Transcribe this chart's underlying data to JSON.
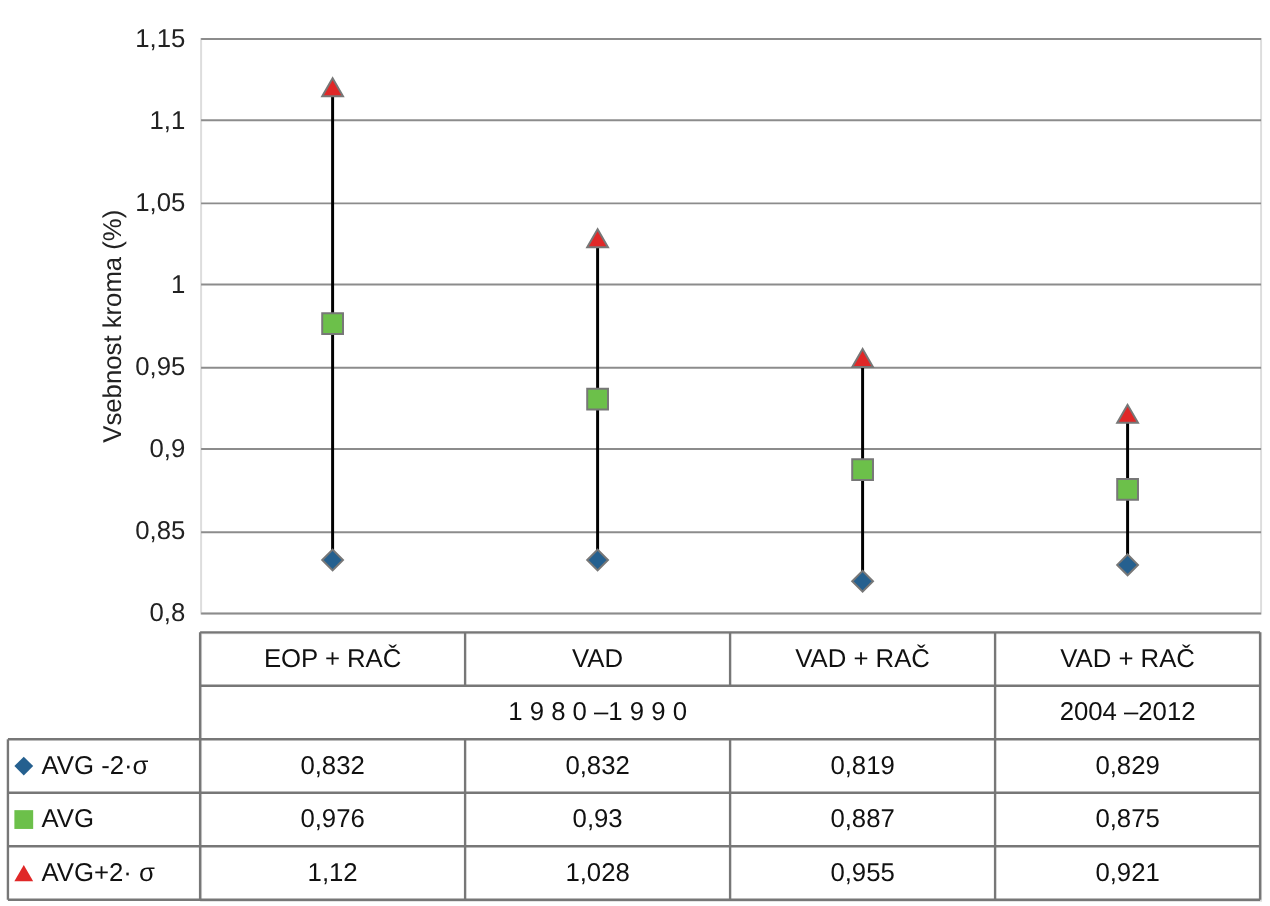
{
  "chart_data": {
    "type": "scatter",
    "ylabel": "Vsebnost kroma (%)",
    "categories": [
      "EOP + RAČ",
      "VAD",
      "VAD + RAČ",
      "VAD + RAČ"
    ],
    "series": [
      {
        "name": "AVG -2·σ",
        "color": "#25608f",
        "marker": "diamond",
        "values": [
          0.832,
          0.832,
          0.819,
          0.829
        ],
        "value_labels": [
          "0,832",
          "0,832",
          "0,819",
          "0,829"
        ]
      },
      {
        "name": "AVG",
        "color": "#6cc04a",
        "marker": "square",
        "values": [
          0.976,
          0.93,
          0.887,
          0.875
        ],
        "value_labels": [
          "0,976",
          "0,93",
          "0,887",
          "0,875"
        ]
      },
      {
        "name": "AVG+2· σ",
        "color": "#e02828",
        "marker": "triangle",
        "values": [
          1.12,
          1.028,
          0.955,
          0.921
        ],
        "value_labels": [
          "1,12",
          "1,028",
          "0,955",
          "0,921"
        ]
      }
    ],
    "annotations": [
      "1 9 8 0 –1 9 9 0",
      "2004 –2012"
    ],
    "ylim": [
      0.8,
      1.15
    ],
    "yticks": [
      {
        "value": 0.8,
        "label": "0,8"
      },
      {
        "value": 0.85,
        "label": "0,85"
      },
      {
        "value": 0.9,
        "label": "0,9"
      },
      {
        "value": 0.95,
        "label": "0,95"
      },
      {
        "value": 1,
        "label": "1"
      },
      {
        "value": 1.05,
        "label": "1,05"
      },
      {
        "value": 1.1,
        "label": "1,1"
      },
      {
        "value": 1.15,
        "label": "1,15"
      }
    ],
    "grid": "y",
    "legend": "bottom left"
  }
}
